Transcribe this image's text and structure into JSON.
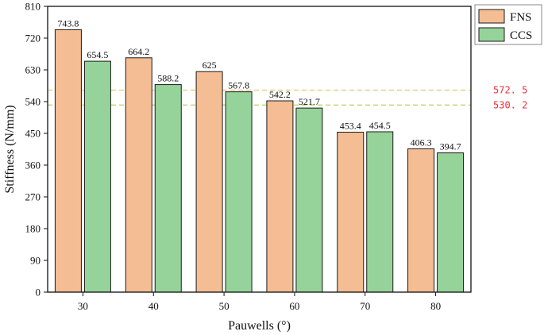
{
  "chart_data": {
    "type": "bar",
    "xlabel": "Pauwells (°)",
    "ylabel": "Stiffness (N/mm)",
    "categories": [
      "30",
      "40",
      "50",
      "60",
      "70",
      "80"
    ],
    "series": [
      {
        "name": "FNS",
        "values": [
          743.8,
          664.2,
          625,
          542.2,
          453.4,
          406.3
        ],
        "labels": [
          "743.8",
          "664.2",
          "625",
          "542.2",
          "453.4",
          "406.3"
        ],
        "color": "#f5bd93"
      },
      {
        "name": "CCS",
        "values": [
          654.5,
          588.2,
          567.8,
          521.7,
          454.5,
          394.7
        ],
        "labels": [
          "654.5",
          "588.2",
          "567.8",
          "521.7",
          "454.5",
          "394.7"
        ],
        "color": "#96d39a"
      }
    ],
    "ylim": [
      0,
      810
    ],
    "yticks": [
      0,
      90,
      180,
      270,
      360,
      450,
      540,
      630,
      720,
      810
    ],
    "ytick_labels": [
      "0",
      "90",
      "180",
      "270",
      "360",
      "450",
      "540",
      "630",
      "720",
      "810"
    ],
    "reference_lines": [
      {
        "value": 572.5,
        "label": "572. 5",
        "color": "#e3cc79",
        "label_color": "#f0303c"
      },
      {
        "value": 530.2,
        "label": "530. 2",
        "color": "#b9d86c",
        "label_color": "#f0303c"
      }
    ],
    "legend_position": "top-right",
    "grid": false
  }
}
